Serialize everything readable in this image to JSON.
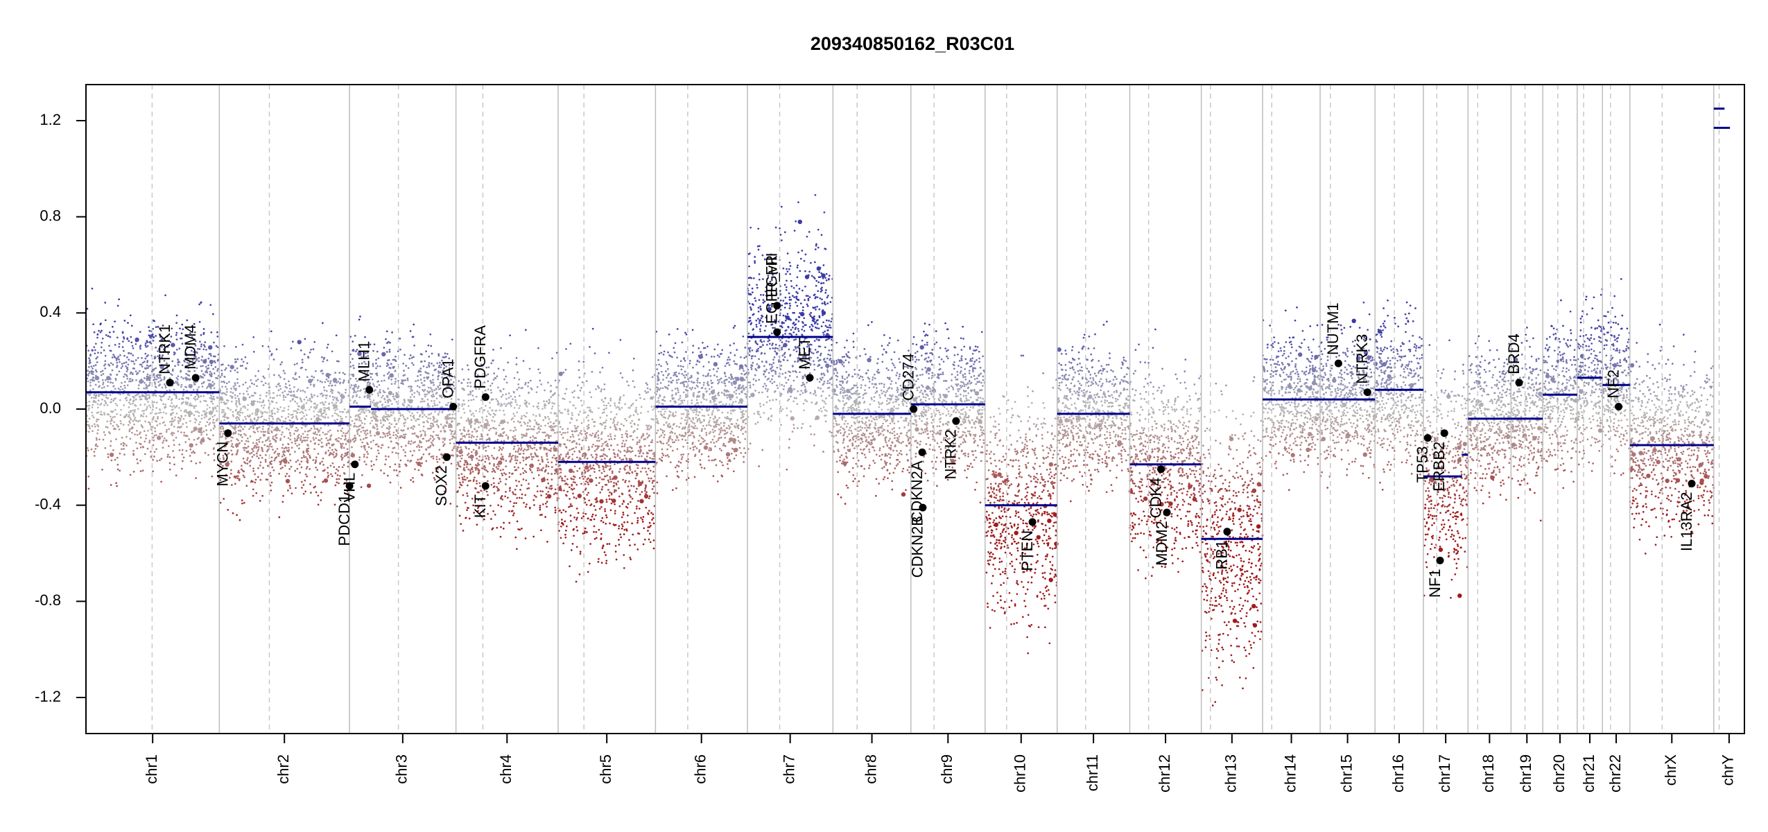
{
  "chart_data": {
    "type": "scatter",
    "title": "209340850162_R03C01",
    "xlabel": "",
    "ylabel": "",
    "ylim": [
      -1.35,
      1.35
    ],
    "yticks": [
      -1.2,
      -0.8,
      -0.4,
      0.0,
      0.4,
      0.8,
      1.2
    ],
    "ytick_labels": [
      "-1.2",
      "-0.8",
      "-0.4",
      "0.0",
      "0.4",
      "0.8",
      "1.2"
    ],
    "grid": false,
    "legend": "none",
    "colors": {
      "segment": "#00008b",
      "gain_point": "#3a3aa6",
      "loss_point": "#a01a1a",
      "neutral_point": "#b8b8b8",
      "chrom_border": "#bdbdbd",
      "centromere": "#c8c8c8",
      "gene_point": "#000000"
    },
    "chromosomes": [
      {
        "name": "chr1",
        "size": 248,
        "cen": 123
      },
      {
        "name": "chr2",
        "size": 242,
        "cen": 93
      },
      {
        "name": "chr3",
        "size": 198,
        "cen": 91
      },
      {
        "name": "chr4",
        "size": 190,
        "cen": 50
      },
      {
        "name": "chr5",
        "size": 181,
        "cen": 48
      },
      {
        "name": "chr6",
        "size": 171,
        "cen": 60
      },
      {
        "name": "chr7",
        "size": 159,
        "cen": 60
      },
      {
        "name": "chr8",
        "size": 145,
        "cen": 45
      },
      {
        "name": "chr9",
        "size": 138,
        "cen": 43
      },
      {
        "name": "chr10",
        "size": 134,
        "cen": 40
      },
      {
        "name": "chr11",
        "size": 135,
        "cen": 53
      },
      {
        "name": "chr12",
        "size": 133,
        "cen": 35
      },
      {
        "name": "chr13",
        "size": 114,
        "cen": 17
      },
      {
        "name": "chr14",
        "size": 107,
        "cen": 17
      },
      {
        "name": "chr15",
        "size": 102,
        "cen": 19
      },
      {
        "name": "chr16",
        "size": 90,
        "cen": 36
      },
      {
        "name": "chr17",
        "size": 83,
        "cen": 25
      },
      {
        "name": "chr18",
        "size": 80,
        "cen": 18
      },
      {
        "name": "chr19",
        "size": 59,
        "cen": 26
      },
      {
        "name": "chr20",
        "size": 64,
        "cen": 28
      },
      {
        "name": "chr21",
        "size": 47,
        "cen": 12
      },
      {
        "name": "chr22",
        "size": 51,
        "cen": 15
      },
      {
        "name": "chrX",
        "size": 156,
        "cen": 60
      },
      {
        "name": "chrY",
        "size": 57,
        "cen": 10
      }
    ],
    "segments": [
      {
        "chr": "chr1",
        "start": 0,
        "end": 248,
        "value": 0.07
      },
      {
        "chr": "chr2",
        "start": 0,
        "end": 242,
        "value": -0.06
      },
      {
        "chr": "chr3",
        "start": 0,
        "end": 40,
        "value": 0.01
      },
      {
        "chr": "chr3",
        "start": 40,
        "end": 198,
        "value": 0.0
      },
      {
        "chr": "chr4",
        "start": 0,
        "end": 190,
        "value": -0.14
      },
      {
        "chr": "chr5",
        "start": 0,
        "end": 181,
        "value": -0.22
      },
      {
        "chr": "chr6",
        "start": 0,
        "end": 171,
        "value": 0.01
      },
      {
        "chr": "chr7",
        "start": 0,
        "end": 159,
        "value": 0.3
      },
      {
        "chr": "chr8",
        "start": 0,
        "end": 145,
        "value": -0.02
      },
      {
        "chr": "chr9",
        "start": 0,
        "end": 138,
        "value": 0.02
      },
      {
        "chr": "chr10",
        "start": 0,
        "end": 134,
        "value": -0.4
      },
      {
        "chr": "chr11",
        "start": 0,
        "end": 135,
        "value": -0.02
      },
      {
        "chr": "chr12",
        "start": 0,
        "end": 133,
        "value": -0.23
      },
      {
        "chr": "chr13",
        "start": 0,
        "end": 114,
        "value": -0.54
      },
      {
        "chr": "chr14",
        "start": 0,
        "end": 107,
        "value": 0.04
      },
      {
        "chr": "chr15",
        "start": 0,
        "end": 102,
        "value": 0.04
      },
      {
        "chr": "chr16",
        "start": 0,
        "end": 90,
        "value": 0.08
      },
      {
        "chr": "chr17",
        "start": 0,
        "end": 25,
        "value": -0.28
      },
      {
        "chr": "chr17",
        "start": 25,
        "end": 72,
        "value": -0.28
      },
      {
        "chr": "chr17",
        "start": 72,
        "end": 83,
        "value": -0.19
      },
      {
        "chr": "chr18",
        "start": 0,
        "end": 80,
        "value": -0.04
      },
      {
        "chr": "chr19",
        "start": 0,
        "end": 59,
        "value": -0.04
      },
      {
        "chr": "chr20",
        "start": 0,
        "end": 64,
        "value": 0.06
      },
      {
        "chr": "chr21",
        "start": 0,
        "end": 47,
        "value": 0.13
      },
      {
        "chr": "chr22",
        "start": 0,
        "end": 51,
        "value": 0.1
      },
      {
        "chr": "chrX",
        "start": 0,
        "end": 156,
        "value": -0.15
      },
      {
        "chr": "chrY",
        "start": 0,
        "end": 20,
        "value": 1.25
      },
      {
        "chr": "chrY",
        "start": 0,
        "end": 30,
        "value": 1.17
      }
    ],
    "genes": [
      {
        "name": "NTRK1",
        "chr": "chr1",
        "pos": 156,
        "value": 0.11
      },
      {
        "name": "MDM4",
        "chr": "chr1",
        "pos": 204,
        "value": 0.13
      },
      {
        "name": "MYCN",
        "chr": "chr2",
        "pos": 16,
        "value": -0.1
      },
      {
        "name": "PDCD1",
        "chr": "chr2",
        "pos": 242,
        "value": -0.32
      },
      {
        "name": "VHL",
        "chr": "chr3",
        "pos": 10,
        "value": -0.23
      },
      {
        "name": "MLH1",
        "chr": "chr3",
        "pos": 37,
        "value": 0.08
      },
      {
        "name": "SOX2",
        "chr": "chr3",
        "pos": 181,
        "value": -0.2
      },
      {
        "name": "OPA1",
        "chr": "chr3",
        "pos": 193,
        "value": 0.01
      },
      {
        "name": "PDGFRA",
        "chr": "chr4",
        "pos": 55,
        "value": 0.05
      },
      {
        "name": "KIT",
        "chr": "chr4",
        "pos": 55,
        "value": -0.32
      },
      {
        "name": "EGFR",
        "chr": "chr7",
        "pos": 55,
        "value": 0.43
      },
      {
        "name": "EGFR_vIII",
        "chr": "chr7",
        "pos": 55,
        "value": 0.32
      },
      {
        "name": "MET",
        "chr": "chr7",
        "pos": 116,
        "value": 0.13
      },
      {
        "name": "CD274",
        "chr": "chr9",
        "pos": 5,
        "value": 0.0
      },
      {
        "name": "CDKN2A",
        "chr": "chr9",
        "pos": 21,
        "value": -0.18
      },
      {
        "name": "CDKN2B",
        "chr": "chr9",
        "pos": 22,
        "value": -0.41
      },
      {
        "name": "NTRK2",
        "chr": "chr9",
        "pos": 84,
        "value": -0.05
      },
      {
        "name": "PTEN",
        "chr": "chr10",
        "pos": 88,
        "value": -0.47
      },
      {
        "name": "CDK4",
        "chr": "chr12",
        "pos": 58,
        "value": -0.25
      },
      {
        "name": "MDM2",
        "chr": "chr12",
        "pos": 69,
        "value": -0.43
      },
      {
        "name": "RB1",
        "chr": "chr13",
        "pos": 48,
        "value": -0.51
      },
      {
        "name": "NUTM1",
        "chr": "chr15",
        "pos": 34,
        "value": 0.19
      },
      {
        "name": "NTRK3",
        "chr": "chr15",
        "pos": 88,
        "value": 0.07
      },
      {
        "name": "TP53",
        "chr": "chr17",
        "pos": 8,
        "value": -0.12
      },
      {
        "name": "NF1",
        "chr": "chr17",
        "pos": 31,
        "value": -0.63
      },
      {
        "name": "ERBB2",
        "chr": "chr17",
        "pos": 39,
        "value": -0.1
      },
      {
        "name": "BRD4",
        "chr": "chr19",
        "pos": 15,
        "value": 0.11
      },
      {
        "name": "NF2",
        "chr": "chr22",
        "pos": 30,
        "value": 0.01
      },
      {
        "name": "IL13RA2",
        "chr": "chrX",
        "pos": 115,
        "value": -0.31
      }
    ]
  }
}
